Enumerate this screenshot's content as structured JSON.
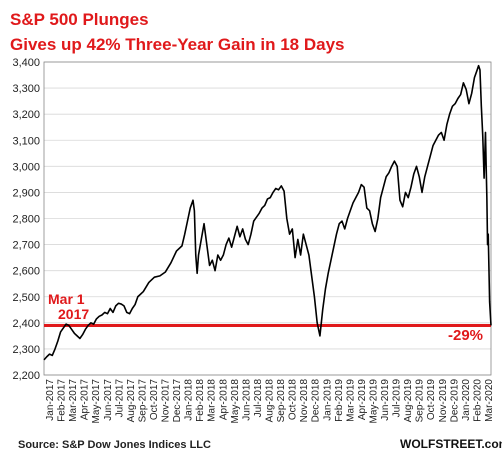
{
  "chart_data": {
    "type": "line",
    "title": "S&P 500 Plunges",
    "subtitle": "Gives up 42% Three-Year Gain in 18 Days",
    "source": "Source: S&P Dow Jones Indices LLC",
    "brand": "WOLFSTREET.com",
    "y_ticks": [
      "2,200",
      "2,300",
      "2,400",
      "2,500",
      "2,600",
      "2,700",
      "2,800",
      "2,900",
      "3,000",
      "3,100",
      "3,200",
      "3,300",
      "3,400"
    ],
    "ylim": [
      2200,
      3400
    ],
    "x_ticks": [
      "Jan-2017",
      "Feb-2017",
      "Mar-2017",
      "Apr-2017",
      "May-2017",
      "Jun-2017",
      "Jul-2017",
      "Aug-2017",
      "Sep-2017",
      "Oct-2017",
      "Nov-2017",
      "Dec-2017",
      "Jan-2018",
      "Feb-2018",
      "Mar-2018",
      "Apr-2018",
      "May-2018",
      "Jun-2018",
      "Jul-2018",
      "Aug-2018",
      "Sep-2018",
      "Oct-2018",
      "Nov-2018",
      "Dec-2018",
      "Jan-2019",
      "Feb-2019",
      "Mar-2019",
      "Apr-2019",
      "May-2019",
      "Jun-2019",
      "Jul-2019",
      "Aug-2019",
      "Sep-2019",
      "Oct-2019",
      "Nov-2019",
      "Dec-2019",
      "Jan-2020",
      "Feb-2020",
      "Mar-2020"
    ],
    "grid": "horizontal",
    "reference_line": {
      "y": 2390
    },
    "annotations": {
      "start_label": "Mar 1",
      "start_label_2": "2017",
      "end_label": "-29%"
    },
    "line_color": "#000000",
    "accent_color": "#e0191b",
    "series": [
      {
        "points": [
          [
            2017.0,
            2258
          ],
          [
            2017.02,
            2270
          ],
          [
            2017.04,
            2280
          ],
          [
            2017.06,
            2275
          ],
          [
            2017.08,
            2300
          ],
          [
            2017.1,
            2330
          ],
          [
            2017.12,
            2365
          ],
          [
            2017.14,
            2380
          ],
          [
            2017.16,
            2395
          ],
          [
            2017.18,
            2390
          ],
          [
            2017.2,
            2375
          ],
          [
            2017.22,
            2360
          ],
          [
            2017.24,
            2350
          ],
          [
            2017.26,
            2340
          ],
          [
            2017.28,
            2355
          ],
          [
            2017.3,
            2375
          ],
          [
            2017.32,
            2390
          ],
          [
            2017.34,
            2400
          ],
          [
            2017.36,
            2395
          ],
          [
            2017.38,
            2415
          ],
          [
            2017.4,
            2425
          ],
          [
            2017.42,
            2430
          ],
          [
            2017.44,
            2440
          ],
          [
            2017.46,
            2435
          ],
          [
            2017.48,
            2455
          ],
          [
            2017.5,
            2440
          ],
          [
            2017.52,
            2465
          ],
          [
            2017.54,
            2475
          ],
          [
            2017.56,
            2472
          ],
          [
            2017.58,
            2465
          ],
          [
            2017.6,
            2440
          ],
          [
            2017.62,
            2435
          ],
          [
            2017.64,
            2455
          ],
          [
            2017.66,
            2470
          ],
          [
            2017.68,
            2500
          ],
          [
            2017.72,
            2520
          ],
          [
            2017.76,
            2555
          ],
          [
            2017.8,
            2575
          ],
          [
            2017.84,
            2580
          ],
          [
            2017.88,
            2595
          ],
          [
            2017.92,
            2630
          ],
          [
            2017.96,
            2675
          ],
          [
            2018.0,
            2695
          ],
          [
            2018.02,
            2740
          ],
          [
            2018.04,
            2790
          ],
          [
            2018.06,
            2840
          ],
          [
            2018.08,
            2870
          ],
          [
            2018.09,
            2830
          ],
          [
            2018.1,
            2660
          ],
          [
            2018.11,
            2590
          ],
          [
            2018.12,
            2660
          ],
          [
            2018.14,
            2720
          ],
          [
            2018.16,
            2780
          ],
          [
            2018.18,
            2700
          ],
          [
            2018.2,
            2620
          ],
          [
            2018.22,
            2640
          ],
          [
            2018.24,
            2600
          ],
          [
            2018.26,
            2660
          ],
          [
            2018.28,
            2640
          ],
          [
            2018.3,
            2660
          ],
          [
            2018.32,
            2700
          ],
          [
            2018.34,
            2725
          ],
          [
            2018.36,
            2690
          ],
          [
            2018.38,
            2730
          ],
          [
            2018.4,
            2770
          ],
          [
            2018.42,
            2730
          ],
          [
            2018.44,
            2760
          ],
          [
            2018.46,
            2720
          ],
          [
            2018.48,
            2700
          ],
          [
            2018.5,
            2740
          ],
          [
            2018.52,
            2790
          ],
          [
            2018.54,
            2805
          ],
          [
            2018.56,
            2820
          ],
          [
            2018.58,
            2840
          ],
          [
            2018.6,
            2850
          ],
          [
            2018.62,
            2875
          ],
          [
            2018.64,
            2880
          ],
          [
            2018.66,
            2900
          ],
          [
            2018.68,
            2915
          ],
          [
            2018.7,
            2910
          ],
          [
            2018.72,
            2925
          ],
          [
            2018.74,
            2905
          ],
          [
            2018.76,
            2800
          ],
          [
            2018.78,
            2740
          ],
          [
            2018.8,
            2760
          ],
          [
            2018.82,
            2650
          ],
          [
            2018.84,
            2720
          ],
          [
            2018.86,
            2660
          ],
          [
            2018.88,
            2740
          ],
          [
            2018.9,
            2700
          ],
          [
            2018.92,
            2660
          ],
          [
            2018.94,
            2580
          ],
          [
            2018.96,
            2500
          ],
          [
            2018.98,
            2400
          ],
          [
            2019.0,
            2350
          ],
          [
            2019.02,
            2450
          ],
          [
            2019.04,
            2530
          ],
          [
            2019.06,
            2590
          ],
          [
            2019.08,
            2640
          ],
          [
            2019.1,
            2690
          ],
          [
            2019.12,
            2740
          ],
          [
            2019.14,
            2780
          ],
          [
            2019.16,
            2790
          ],
          [
            2019.18,
            2760
          ],
          [
            2019.2,
            2800
          ],
          [
            2019.22,
            2830
          ],
          [
            2019.24,
            2860
          ],
          [
            2019.26,
            2880
          ],
          [
            2019.28,
            2900
          ],
          [
            2019.3,
            2930
          ],
          [
            2019.32,
            2920
          ],
          [
            2019.34,
            2840
          ],
          [
            2019.36,
            2830
          ],
          [
            2019.38,
            2780
          ],
          [
            2019.4,
            2750
          ],
          [
            2019.42,
            2800
          ],
          [
            2019.44,
            2880
          ],
          [
            2019.46,
            2920
          ],
          [
            2019.48,
            2960
          ],
          [
            2019.5,
            2975
          ],
          [
            2019.52,
            3000
          ],
          [
            2019.54,
            3020
          ],
          [
            2019.56,
            3000
          ],
          [
            2019.58,
            2870
          ],
          [
            2019.6,
            2845
          ],
          [
            2019.62,
            2900
          ],
          [
            2019.64,
            2880
          ],
          [
            2019.66,
            2920
          ],
          [
            2019.68,
            2970
          ],
          [
            2019.7,
            3000
          ],
          [
            2019.72,
            2960
          ],
          [
            2019.74,
            2900
          ],
          [
            2019.76,
            2960
          ],
          [
            2019.78,
            3000
          ],
          [
            2019.8,
            3040
          ],
          [
            2019.82,
            3080
          ],
          [
            2019.84,
            3100
          ],
          [
            2019.86,
            3120
          ],
          [
            2019.88,
            3130
          ],
          [
            2019.9,
            3100
          ],
          [
            2019.92,
            3160
          ],
          [
            2019.94,
            3200
          ],
          [
            2019.96,
            3230
          ],
          [
            2019.98,
            3240
          ],
          [
            2020.0,
            3260
          ],
          [
            2020.02,
            3275
          ],
          [
            2020.04,
            3320
          ],
          [
            2020.06,
            3295
          ],
          [
            2020.08,
            3240
          ],
          [
            2020.1,
            3280
          ],
          [
            2020.12,
            3340
          ],
          [
            2020.14,
            3370
          ],
          [
            2020.15,
            3386
          ],
          [
            2020.16,
            3370
          ],
          [
            2020.17,
            3230
          ],
          [
            2020.18,
            3120
          ],
          [
            2020.19,
            2955
          ],
          [
            2020.2,
            3130
          ],
          [
            2020.205,
            3000
          ],
          [
            2020.21,
            2880
          ],
          [
            2020.215,
            2700
          ],
          [
            2020.22,
            2740
          ],
          [
            2020.23,
            2480
          ],
          [
            2020.24,
            2390
          ]
        ]
      }
    ]
  }
}
